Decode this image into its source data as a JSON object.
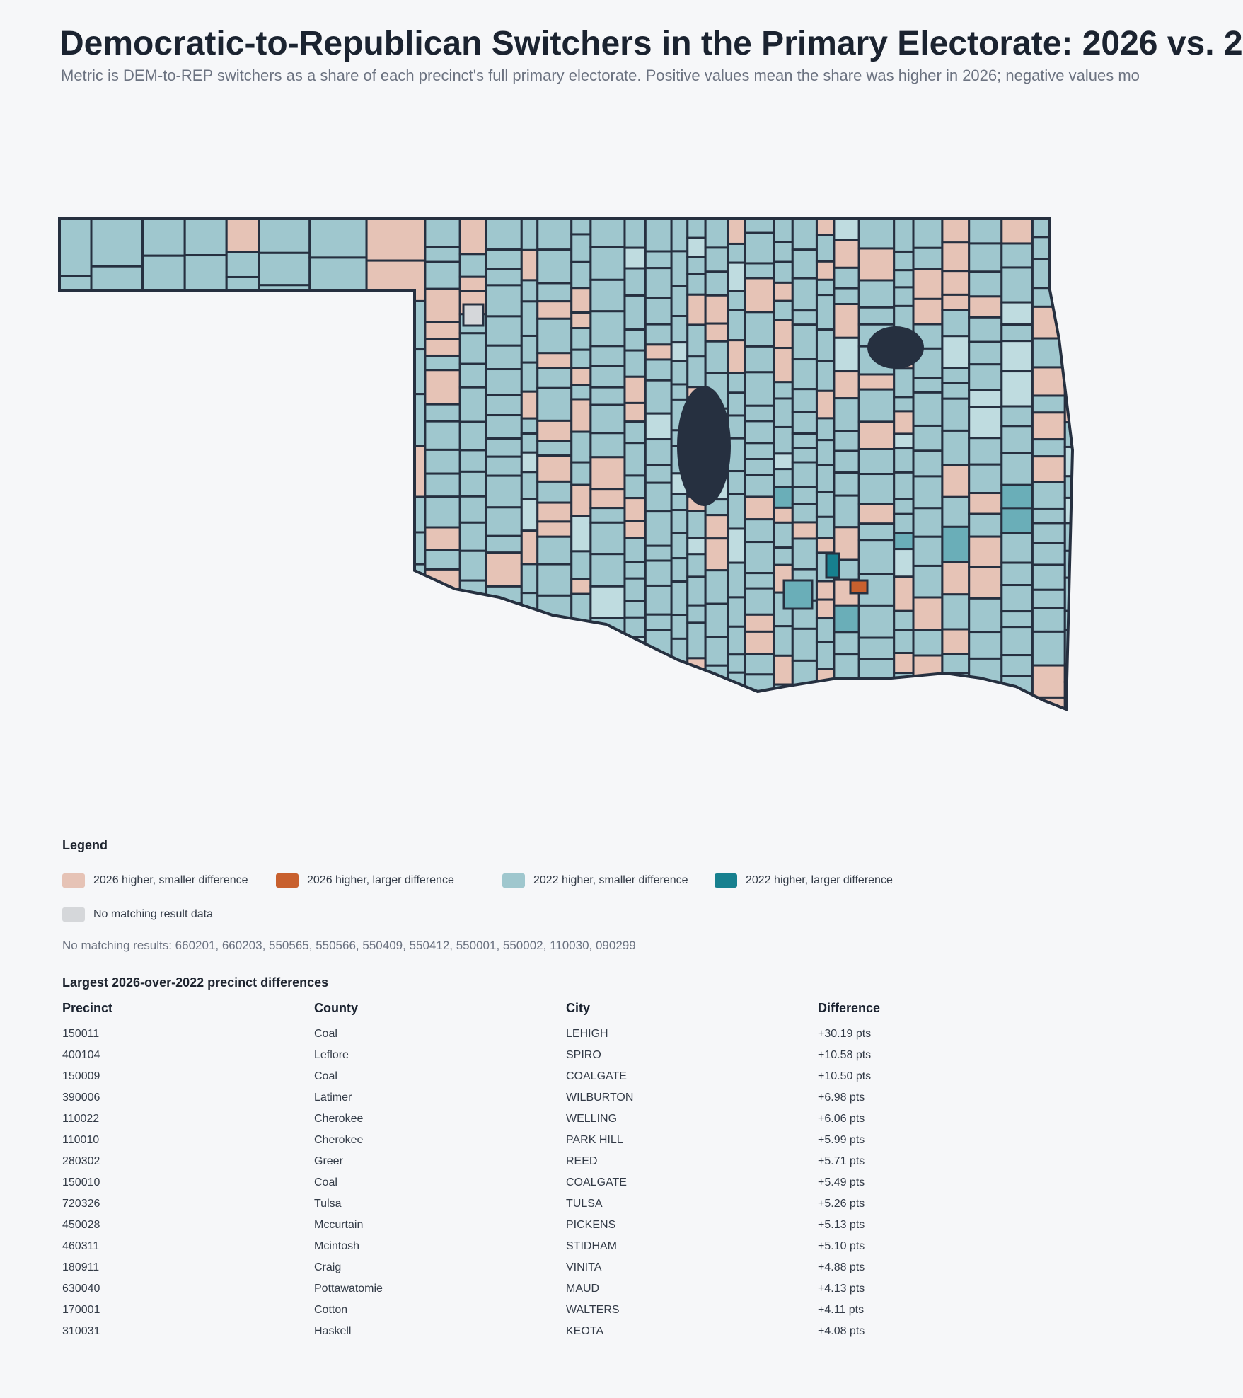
{
  "header": {
    "title": "Democratic-to-Republican Switchers in the Primary Electorate: 2026 vs. 2",
    "subtitle": "Metric is DEM-to-REP switchers as a share of each precinct's full primary electorate. Positive values mean the share was higher in 2026; negative values mo"
  },
  "legend": {
    "title": "Legend",
    "items": [
      {
        "label": "2026 higher, smaller difference",
        "color": "#e6c3b6"
      },
      {
        "label": "2026 higher, larger difference",
        "color": "#c8602e"
      },
      {
        "label": "2022 higher, smaller difference",
        "color": "#9fc7ce"
      },
      {
        "label": "2022 higher, larger difference",
        "color": "#17808f"
      },
      {
        "label": "No matching result data",
        "color": "#d5d7da"
      }
    ]
  },
  "no_match": "No matching results: 660201, 660203, 550565, 550566, 550409, 550412, 550001, 550002, 110030, 090299",
  "table": {
    "title": "Largest 2026-over-2022 precinct differences",
    "columns": [
      "Precinct",
      "County",
      "City",
      "Difference"
    ],
    "rows": [
      [
        "150011",
        "Coal",
        "LEHIGH",
        "+30.19 pts"
      ],
      [
        "400104",
        "Leflore",
        "SPIRO",
        "+10.58 pts"
      ],
      [
        "150009",
        "Coal",
        "COALGATE",
        "+10.50 pts"
      ],
      [
        "390006",
        "Latimer",
        "WILBURTON",
        "+6.98 pts"
      ],
      [
        "110022",
        "Cherokee",
        "WELLING",
        "+6.06 pts"
      ],
      [
        "110010",
        "Cherokee",
        "PARK HILL",
        "+5.99 pts"
      ],
      [
        "280302",
        "Greer",
        "REED",
        "+5.71 pts"
      ],
      [
        "150010",
        "Coal",
        "COALGATE",
        "+5.49 pts"
      ],
      [
        "720326",
        "Tulsa",
        "TULSA",
        "+5.26 pts"
      ],
      [
        "450028",
        "Mccurtain",
        "PICKENS",
        "+5.13 pts"
      ],
      [
        "460311",
        "Mcintosh",
        "STIDHAM",
        "+5.10 pts"
      ],
      [
        "180911",
        "Craig",
        "VINITA",
        "+4.88 pts"
      ],
      [
        "630040",
        "Pottawatomie",
        "MAUD",
        "+4.13 pts"
      ],
      [
        "170001",
        "Cotton",
        "WALTERS",
        "+4.11 pts"
      ],
      [
        "310031",
        "Haskell",
        "KEOTA",
        "+4.08 pts"
      ]
    ]
  }
}
